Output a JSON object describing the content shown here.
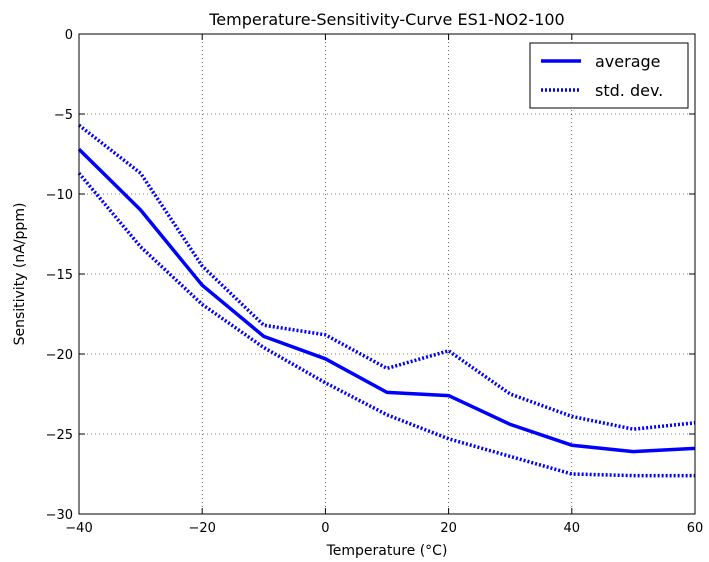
{
  "chart_data": {
    "type": "line",
    "title": "Temperature-Sensitivity-Curve ES1-NO2-100",
    "xlabel": "Temperature (°C)",
    "ylabel": "Sensitivity (nA/ppm)",
    "xlim": [
      -40,
      60
    ],
    "ylim": [
      -30,
      0
    ],
    "xticks": [
      -40,
      -20,
      0,
      20,
      40,
      60
    ],
    "xtick_labels": [
      "−40",
      "−20",
      "0",
      "20",
      "40",
      "60"
    ],
    "yticks": [
      0,
      -5,
      -10,
      -15,
      -20,
      -25,
      -30
    ],
    "ytick_labels": [
      "0",
      "−5",
      "−10",
      "−15",
      "−20",
      "−25",
      "−30"
    ],
    "grid": true,
    "legend_position": "top-right",
    "x": [
      -40,
      -30,
      -20,
      -10,
      0,
      10,
      20,
      30,
      40,
      50,
      60
    ],
    "series": [
      {
        "name": "average",
        "style": "solid",
        "color": "#0000ff",
        "values": [
          -7.2,
          -11.0,
          -15.7,
          -18.9,
          -20.3,
          -22.4,
          -22.6,
          -24.4,
          -25.7,
          -26.1,
          -25.9
        ]
      },
      {
        "name": "std. dev.",
        "style": "dotted",
        "color": "#0000ff",
        "values": [
          -5.7,
          -8.7,
          -14.5,
          -18.2,
          -18.8,
          -20.9,
          -19.8,
          -22.5,
          -23.9,
          -24.7,
          -24.3
        ]
      },
      {
        "name": "",
        "style": "dotted",
        "color": "#0000ff",
        "values": [
          -8.7,
          -13.3,
          -16.9,
          -19.6,
          -21.8,
          -23.8,
          -25.3,
          -26.4,
          -27.5,
          -27.6,
          -27.6
        ]
      }
    ]
  }
}
